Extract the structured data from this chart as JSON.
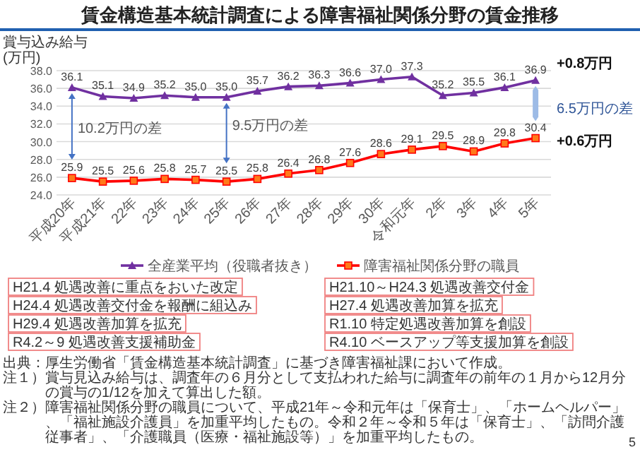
{
  "chart_data": {
    "type": "line",
    "title": "賃金構造基本統計調査による障害福祉関係分野の賃金推移",
    "ylabel": "賞与込み給与\n(万円)",
    "categories": [
      "平成20年",
      "平成21年",
      "22年",
      "23年",
      "24年",
      "25年",
      "26年",
      "27年",
      "28年",
      "29年",
      "30年",
      "令和元年",
      "2年",
      "3年",
      "4年",
      "5年"
    ],
    "series": [
      {
        "name": "全産業平均（役職者抜き）",
        "color": "#7030a0",
        "marker": "triangle",
        "values": [
          36.1,
          35.1,
          34.9,
          35.2,
          35.0,
          35.0,
          35.7,
          36.2,
          36.3,
          36.6,
          37.0,
          37.3,
          35.2,
          35.5,
          36.1,
          36.9
        ],
        "value_labels": [
          "36.1",
          "35.1",
          "34.9",
          "35.2",
          "35.0",
          "35.0",
          "35.7",
          "36.2",
          "36.3",
          "36.6",
          "37.0",
          "37.3",
          "35.2",
          "35.5",
          "36.1",
          "36.9"
        ]
      },
      {
        "name": "障害福祉関係分野の職員",
        "color": "#ff0000",
        "marker": "square",
        "values": [
          25.9,
          25.5,
          25.6,
          25.8,
          25.7,
          25.5,
          25.8,
          26.4,
          26.8,
          27.6,
          28.6,
          29.1,
          29.5,
          28.9,
          29.8,
          30.4
        ],
        "value_labels": [
          "25.9",
          "25.5",
          "25.6",
          "25.8",
          "25.7",
          "25.5",
          "25.8",
          "26.4",
          "26.8",
          "27.6",
          "28.6",
          "29.1",
          "29.5",
          "28.9",
          "29.8",
          "30.4"
        ]
      }
    ],
    "ylim": [
      24,
      38
    ],
    "yticks": [
      {
        "value": 24,
        "label": "24.0"
      },
      {
        "value": 26,
        "label": "26.0"
      },
      {
        "value": 28,
        "label": "28.0"
      },
      {
        "value": 30,
        "label": "30.0"
      },
      {
        "value": 32,
        "label": "32.0"
      },
      {
        "value": 34,
        "label": "34.0"
      },
      {
        "value": 36,
        "label": "36.0"
      },
      {
        "value": 38,
        "label": "38.0"
      }
    ],
    "grid": "y",
    "legend": "bottom",
    "line_style": "solid",
    "annotations": [
      "10.2万円の差",
      "9.5万円の差",
      "6.5万円の差",
      "+0.8万円",
      "+0.6万円",
      "H21.4 処遇改善に重点をおいた改定",
      "H21.10～H24.3 処遇改善交付金",
      "H24.4 処遇改善交付金を報酬に組込み",
      "H27.4 処遇改善加算を拡充",
      "H29.4 処遇改善加算を拡充",
      "R1.10 特定処遇改善加算を創設",
      "R4.2～9 処遇改善支援補助金",
      "R4.10 ベースアップ等支援加算を創設",
      "出典：厚生労働省「賃金構造基本統計調査」に基づき障害福祉課において作成。",
      "注１）賞与見込み給与は、調査年の６月分として支払われた給与に調査年の前年の１月から12月分の賞与の1/12を加えて算出した額。",
      "注２）障害福祉関係分野の職員について、平成21年～令和元年は「保育士」、「ホームヘルパー」、「福祉施設介護員」を加重平均したもの。令和２年～令和５年は「保育士」、「訪問介護従事者」、「介護職員（医療・福祉施設等）」を加重平均したもの。",
      "5"
    ]
  }
}
